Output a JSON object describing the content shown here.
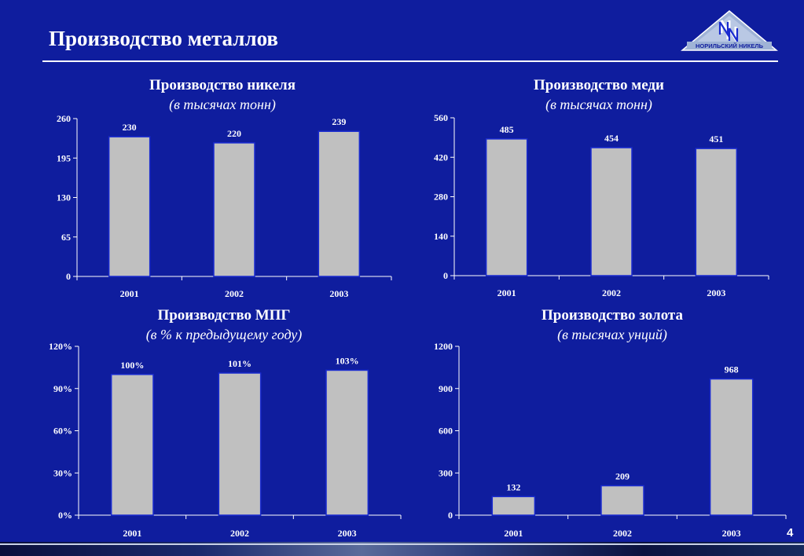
{
  "header": {
    "title": "Производство металлов",
    "logo_text": "НОРИЛЬСКИЙ НИКЕЛЬ",
    "page_number": "4"
  },
  "colors": {
    "background": "#0f1d9e",
    "bar_fill": "#c0c0c0",
    "bar_stroke": "#1a2bd0",
    "text": "#ffffff"
  },
  "chart_data": [
    {
      "type": "bar",
      "title": "Производство никеля",
      "subtitle": "(в тысячах тонн)",
      "categories": [
        "2001",
        "2002",
        "2003"
      ],
      "values": [
        230,
        220,
        239
      ],
      "value_labels": [
        "230",
        "220",
        "239"
      ],
      "y_ticks": [
        "0",
        "65",
        "130",
        "195",
        "260"
      ],
      "ylim": [
        0,
        260
      ],
      "grid": false,
      "legend": "none"
    },
    {
      "type": "bar",
      "title": "Производство меди",
      "subtitle": "(в тысячах тонн)",
      "categories": [
        "2001",
        "2002",
        "2003"
      ],
      "values": [
        485,
        454,
        451
      ],
      "value_labels": [
        "485",
        "454",
        "451"
      ],
      "y_ticks": [
        "0",
        "140",
        "280",
        "420",
        "560"
      ],
      "ylim": [
        0,
        560
      ],
      "grid": false,
      "legend": "none"
    },
    {
      "type": "bar",
      "title": "Производство МПГ",
      "subtitle": "(в % к предыдущему году)",
      "categories": [
        "2001",
        "2002",
        "2003"
      ],
      "values": [
        100,
        101,
        103
      ],
      "value_labels": [
        "100%",
        "101%",
        "103%"
      ],
      "y_ticks": [
        "0%",
        "30%",
        "60%",
        "90%",
        "120%"
      ],
      "ylim": [
        0,
        120
      ],
      "grid": false,
      "legend": "none"
    },
    {
      "type": "bar",
      "title": "Производство золота",
      "subtitle": "(в тысячах унций)",
      "categories": [
        "2001",
        "2002",
        "2003"
      ],
      "values": [
        132,
        209,
        968
      ],
      "value_labels": [
        "132",
        "209",
        "968"
      ],
      "y_ticks": [
        "0",
        "300",
        "600",
        "900",
        "1200"
      ],
      "ylim": [
        0,
        1200
      ],
      "grid": false,
      "legend": "none"
    }
  ]
}
